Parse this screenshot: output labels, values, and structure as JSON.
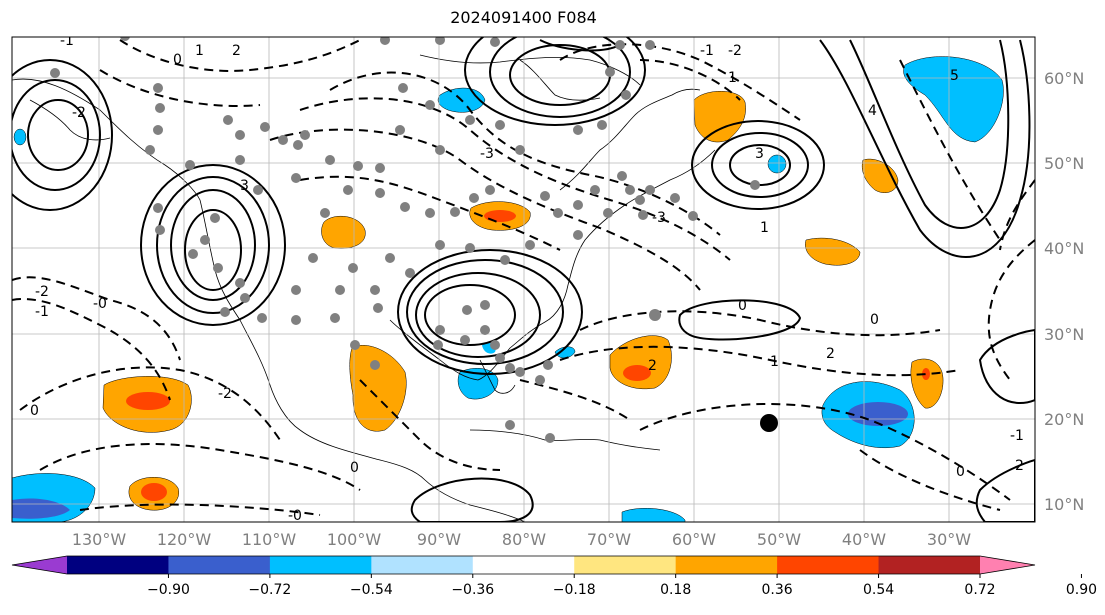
{
  "title": "2024091400 F084",
  "map": {
    "lon_labels": [
      "130°W",
      "120°W",
      "110°W",
      "100°W",
      "90°W",
      "80°W",
      "70°W",
      "60°W",
      "50°W",
      "40°W",
      "30°W"
    ],
    "lat_labels": [
      "60°N",
      "50°N",
      "40°N",
      "30°N",
      "20°N",
      "10°N"
    ],
    "contour_labels": [
      "-1",
      "-2",
      "-3",
      "0",
      "1",
      "2",
      "3",
      "4",
      "5",
      "-0",
      "-1",
      "-2",
      "0",
      "1",
      "2",
      "3",
      "-2",
      "-3",
      "1",
      "2",
      "0",
      "-1",
      "-2",
      "0",
      "0",
      "-0",
      "1",
      "2",
      "0",
      "-1"
    ]
  },
  "colorbar": {
    "labels": [
      "−0.90",
      "−0.72",
      "−0.54",
      "−0.36",
      "−0.18",
      "0.18",
      "0.36",
      "0.54",
      "0.72",
      "0.90"
    ],
    "colors": [
      "#9a3bd1",
      "#000080",
      "#3a5fcd",
      "#00bfff",
      "#b0e2ff",
      "#ffffff",
      "#ffe680",
      "#ffa500",
      "#ff4500",
      "#b22222",
      "#ff80b0"
    ]
  }
}
